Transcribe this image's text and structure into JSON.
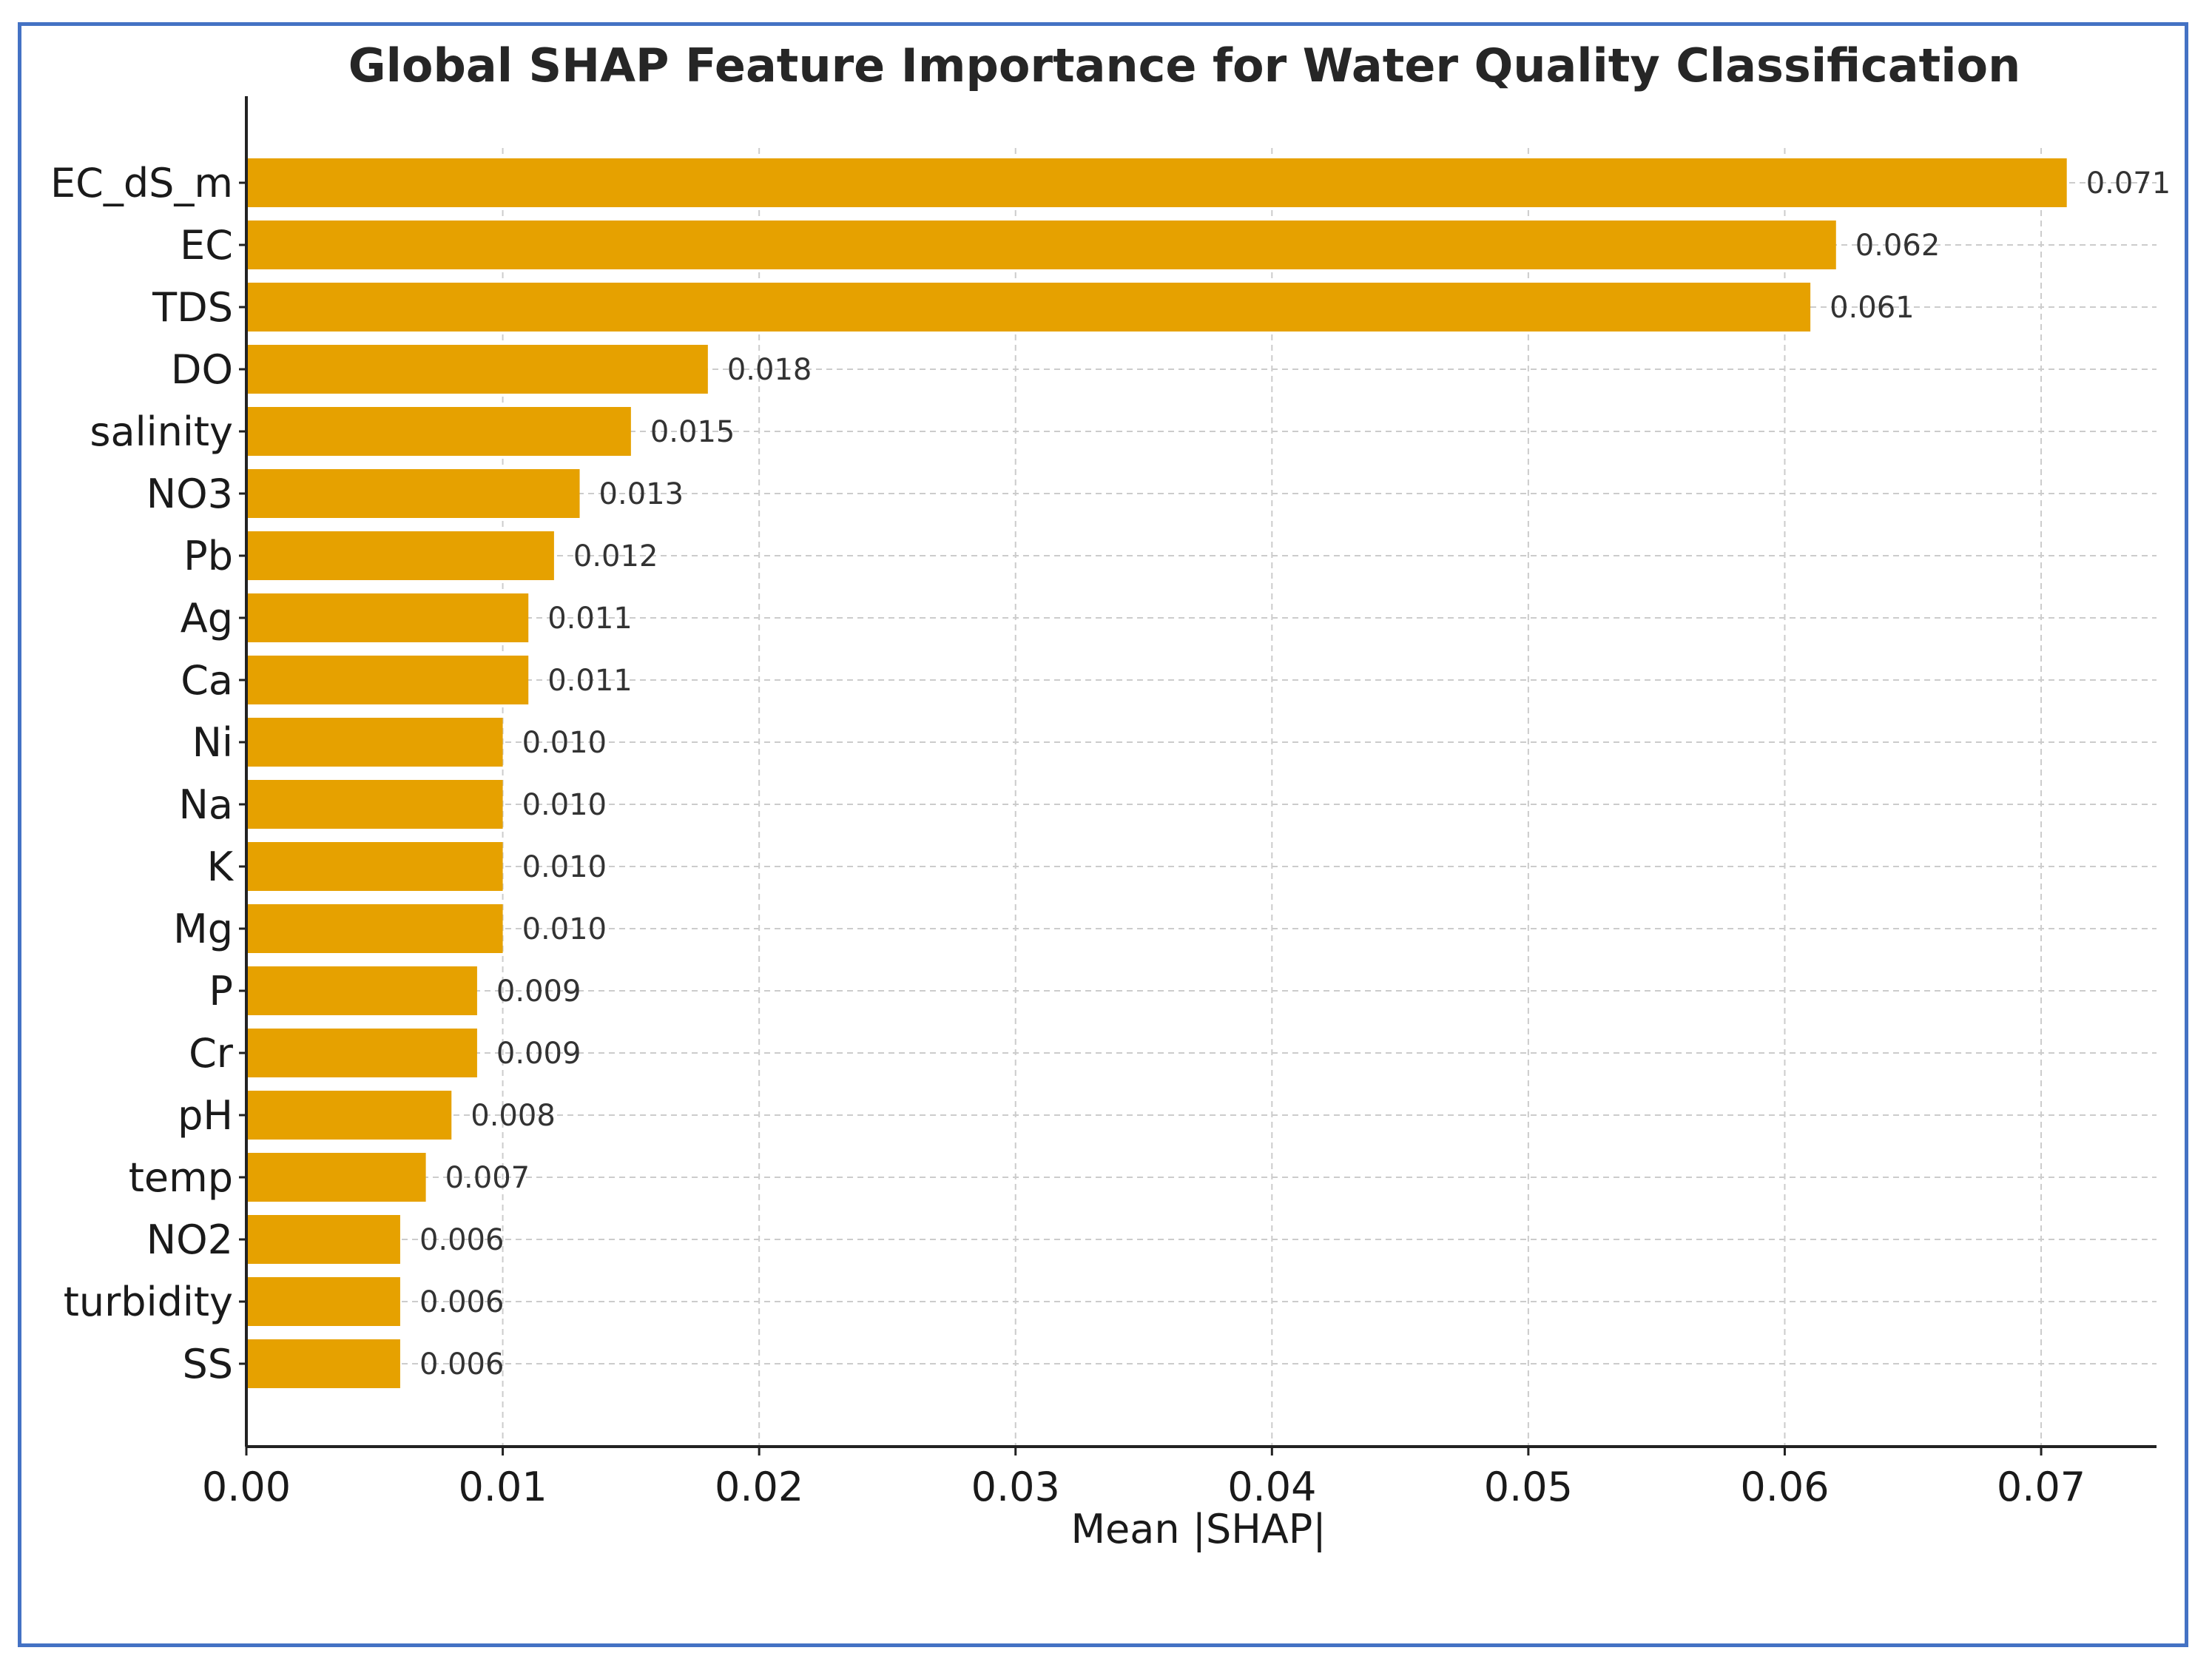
{
  "chart_data": {
    "type": "bar",
    "orientation": "horizontal",
    "title": "Global SHAP Feature Importance for Water Quality Classification",
    "xlabel": "Mean |SHAP|",
    "ylabel": "",
    "xlim": [
      0,
      0.0745
    ],
    "xticks": [
      0.0,
      0.01,
      0.02,
      0.03,
      0.04,
      0.05,
      0.06,
      0.07
    ],
    "xtick_labels": [
      "0.00",
      "0.01",
      "0.02",
      "0.03",
      "0.04",
      "0.05",
      "0.06",
      "0.07"
    ],
    "grid": true,
    "bar_color": "#E6A100",
    "categories": [
      "EC_dS_m",
      "EC",
      "TDS",
      "DO",
      "salinity",
      "NO3",
      "Pb",
      "Ag",
      "Ca",
      "Ni",
      "Na",
      "K",
      "Mg",
      "P",
      "Cr",
      "pH",
      "temp",
      "NO2",
      "turbidity",
      "SS"
    ],
    "values": [
      0.071,
      0.062,
      0.061,
      0.018,
      0.015,
      0.013,
      0.012,
      0.011,
      0.011,
      0.01,
      0.01,
      0.01,
      0.01,
      0.009,
      0.009,
      0.008,
      0.007,
      0.006,
      0.006,
      0.006
    ],
    "value_labels": [
      "0.071",
      "0.062",
      "0.061",
      "0.018",
      "0.015",
      "0.013",
      "0.012",
      "0.011",
      "0.011",
      "0.010",
      "0.010",
      "0.010",
      "0.010",
      "0.009",
      "0.009",
      "0.008",
      "0.007",
      "0.006",
      "0.006",
      "0.006"
    ]
  },
  "colors": {
    "frame_border": "#4472C4",
    "bar": "#E6A100"
  }
}
